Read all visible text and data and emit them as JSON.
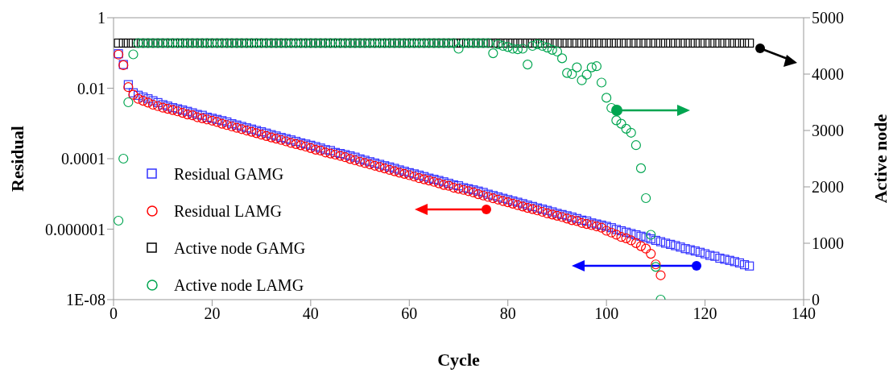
{
  "chart_data": {
    "type": "scatter",
    "xlabel": "Cycle",
    "ylabel": "Residual",
    "y2label": "Active node",
    "log": "y",
    "grid": false,
    "legend": "left",
    "xlim": [
      0,
      140
    ],
    "xticks": [
      0,
      20,
      40,
      60,
      80,
      100,
      120,
      140
    ],
    "ylim": [
      1e-08,
      1
    ],
    "yticks": [
      {
        "value": 1e-08,
        "label": "1E-08"
      },
      {
        "value": 1e-06,
        "label": "0.000001"
      },
      {
        "value": 0.0001,
        "label": "0.0001"
      },
      {
        "value": 0.01,
        "label": "0.01"
      },
      {
        "value": 1,
        "label": "1"
      }
    ],
    "y2lim": [
      0,
      5000
    ],
    "y2ticks": [
      0,
      1000,
      2000,
      3000,
      4000,
      5000
    ],
    "series": [
      {
        "name": "Residual GAMG",
        "color": "#3333ff",
        "marker": "square",
        "x": [
          1,
          2,
          3,
          4,
          5,
          6,
          7,
          8,
          9,
          10,
          11,
          12,
          13,
          14,
          15,
          16,
          17,
          18,
          19,
          20,
          21,
          22,
          23,
          24,
          25,
          26,
          27,
          28,
          29,
          30,
          31,
          32,
          33,
          34,
          35,
          36,
          37,
          38,
          39,
          40,
          41,
          42,
          43,
          44,
          45,
          46,
          47,
          48,
          49,
          50,
          51,
          52,
          53,
          54,
          55,
          56,
          57,
          58,
          59,
          60,
          61,
          62,
          63,
          64,
          65,
          66,
          67,
          68,
          69,
          70,
          71,
          72,
          73,
          74,
          75,
          76,
          77,
          78,
          79,
          80,
          81,
          82,
          83,
          84,
          85,
          86,
          87,
          88,
          89,
          90,
          91,
          92,
          93,
          94,
          95,
          96,
          97,
          98,
          99,
          100,
          101,
          102,
          103,
          104,
          105,
          106,
          107,
          108,
          109,
          110,
          111,
          112,
          113,
          114,
          115,
          116,
          117,
          118,
          119,
          120,
          121,
          122,
          123,
          124,
          125,
          126,
          127,
          128,
          129
        ],
        "values": [
          0.095,
          0.047,
          0.0126,
          0.0074,
          0.0063,
          0.0056,
          0.005,
          0.0044,
          0.0039,
          0.0034,
          0.0031,
          0.0028,
          0.0026,
          0.0024,
          0.0022,
          0.002,
          0.0018,
          0.0017,
          0.0015,
          0.0014,
          0.0013,
          0.0012,
          0.0011,
          0.00098,
          0.0009,
          0.00082,
          0.00075,
          0.00069,
          0.00063,
          0.00058,
          0.00053,
          0.00048,
          0.00044,
          0.0004,
          0.00037,
          0.00034,
          0.00031,
          0.00028,
          0.00026,
          0.00024,
          0.00022,
          0.0002,
          0.00018,
          0.00017,
          0.00015,
          0.00014,
          0.00013,
          0.00012,
          0.00011,
          9.8e-05,
          9e-05,
          8.2e-05,
          7.5e-05,
          6.9e-05,
          6.3e-05,
          5.8e-05,
          5.3e-05,
          4.8e-05,
          4.4e-05,
          4e-05,
          3.7e-05,
          3.4e-05,
          3.1e-05,
          2.8e-05,
          2.6e-05,
          2.4e-05,
          2.2e-05,
          2e-05,
          1.8e-05,
          1.7e-05,
          1.5e-05,
          1.4e-05,
          1.3e-05,
          1.2e-05,
          1.1e-05,
          9.8e-06,
          9e-06,
          8.2e-06,
          7.5e-06,
          6.9e-06,
          6.3e-06,
          5.8e-06,
          5.3e-06,
          4.8e-06,
          4.4e-06,
          4e-06,
          3.7e-06,
          3.4e-06,
          3.1e-06,
          2.8e-06,
          2.6e-06,
          2.4e-06,
          2.2e-06,
          2e-06,
          1.8e-06,
          1.7e-06,
          1.5e-06,
          1.4e-06,
          1.3e-06,
          1.2e-06,
          1.1e-06,
          9.8e-07,
          9e-07,
          8.2e-07,
          7.5e-07,
          6.9e-07,
          6.3e-07,
          5.8e-07,
          5.3e-07,
          4.8e-07,
          4.4e-07,
          4e-07,
          3.7e-07,
          3.4e-07,
          3.1e-07,
          2.8e-07,
          2.6e-07,
          2.4e-07,
          2.2e-07,
          2e-07,
          1.8e-07,
          1.7e-07,
          1.5e-07,
          1.4e-07,
          1.3e-07,
          1.2e-07,
          1.1e-07,
          9.8e-08,
          9e-08
        ]
      },
      {
        "name": "Residual LAMG",
        "color": "#ff0000",
        "marker": "circle",
        "x": [
          1,
          2,
          3,
          4,
          5,
          6,
          7,
          8,
          9,
          10,
          11,
          12,
          13,
          14,
          15,
          16,
          17,
          18,
          19,
          20,
          21,
          22,
          23,
          24,
          25,
          26,
          27,
          28,
          29,
          30,
          31,
          32,
          33,
          34,
          35,
          36,
          37,
          38,
          39,
          40,
          41,
          42,
          43,
          44,
          45,
          46,
          47,
          48,
          49,
          50,
          51,
          52,
          53,
          54,
          55,
          56,
          57,
          58,
          59,
          60,
          61,
          62,
          63,
          64,
          65,
          66,
          67,
          68,
          69,
          70,
          71,
          72,
          73,
          74,
          75,
          76,
          77,
          78,
          79,
          80,
          81,
          82,
          83,
          84,
          85,
          86,
          87,
          88,
          89,
          90,
          91,
          92,
          93,
          94,
          95,
          96,
          97,
          98,
          99,
          100,
          101,
          102,
          103,
          104,
          105,
          106,
          107,
          108,
          109,
          110,
          111
        ],
        "values": [
          0.09,
          0.045,
          0.0107,
          0.0065,
          0.005,
          0.0044,
          0.0039,
          0.0034,
          0.0031,
          0.0028,
          0.0026,
          0.0024,
          0.0022,
          0.002,
          0.0018,
          0.0017,
          0.0015,
          0.0014,
          0.0013,
          0.0012,
          0.0011,
          0.00098,
          0.0009,
          0.00082,
          0.00075,
          0.00069,
          0.00063,
          0.00058,
          0.00053,
          0.00048,
          0.00044,
          0.0004,
          0.00037,
          0.00034,
          0.00031,
          0.00028,
          0.00026,
          0.00024,
          0.00022,
          0.0002,
          0.00018,
          0.00017,
          0.00015,
          0.00014,
          0.00013,
          0.00012,
          0.00011,
          9.8e-05,
          9e-05,
          8.2e-05,
          7.5e-05,
          6.9e-05,
          6.3e-05,
          5.8e-05,
          5.3e-05,
          4.8e-05,
          4.4e-05,
          4e-05,
          3.7e-05,
          3.4e-05,
          3.1e-05,
          2.8e-05,
          2.6e-05,
          2.4e-05,
          2.2e-05,
          2e-05,
          1.8e-05,
          1.7e-05,
          1.5e-05,
          1.4e-05,
          1.3e-05,
          1.2e-05,
          1.1e-05,
          9.8e-06,
          9e-06,
          8.2e-06,
          7.5e-06,
          6.9e-06,
          6.3e-06,
          5.8e-06,
          5.3e-06,
          4.8e-06,
          4.4e-06,
          4e-06,
          3.7e-06,
          3.4e-06,
          3.1e-06,
          2.8e-06,
          2.6e-06,
          2.4e-06,
          2.2e-06,
          2e-06,
          1.8e-06,
          1.7e-06,
          1.5e-06,
          1.4e-06,
          1.3e-06,
          1.2e-06,
          1.1e-06,
          9e-07,
          8e-07,
          7e-07,
          6e-07,
          5.5e-07,
          4.8e-07,
          4e-07,
          3.3e-07,
          2.8e-07,
          2e-07,
          1e-07,
          4.9e-08
        ]
      },
      {
        "name": "Active node GAMG",
        "color": "#000000",
        "marker": "square",
        "axis": "y2",
        "x": [
          1,
          2,
          3,
          4,
          5,
          6,
          7,
          8,
          9,
          10,
          11,
          12,
          13,
          14,
          15,
          16,
          17,
          18,
          19,
          20,
          21,
          22,
          23,
          24,
          25,
          26,
          27,
          28,
          29,
          30,
          31,
          32,
          33,
          34,
          35,
          36,
          37,
          38,
          39,
          40,
          41,
          42,
          43,
          44,
          45,
          46,
          47,
          48,
          49,
          50,
          51,
          52,
          53,
          54,
          55,
          56,
          57,
          58,
          59,
          60,
          61,
          62,
          63,
          64,
          65,
          66,
          67,
          68,
          69,
          70,
          71,
          72,
          73,
          74,
          75,
          76,
          77,
          78,
          79,
          80,
          81,
          82,
          83,
          84,
          85,
          86,
          87,
          88,
          89,
          90,
          91,
          92,
          93,
          94,
          95,
          96,
          97,
          98,
          99,
          100,
          101,
          102,
          103,
          104,
          105,
          106,
          107,
          108,
          109,
          110,
          111,
          112,
          113,
          114,
          115,
          116,
          117,
          118,
          119,
          120,
          121,
          122,
          123,
          124,
          125,
          126,
          127,
          128,
          129
        ],
        "values": [
          4550,
          4550,
          4550,
          4550,
          4550,
          4550,
          4550,
          4550,
          4550,
          4550,
          4550,
          4550,
          4550,
          4550,
          4550,
          4550,
          4550,
          4550,
          4550,
          4550,
          4550,
          4550,
          4550,
          4550,
          4550,
          4550,
          4550,
          4550,
          4550,
          4550,
          4550,
          4550,
          4550,
          4550,
          4550,
          4550,
          4550,
          4550,
          4550,
          4550,
          4550,
          4550,
          4550,
          4550,
          4550,
          4550,
          4550,
          4550,
          4550,
          4550,
          4550,
          4550,
          4550,
          4550,
          4550,
          4550,
          4550,
          4550,
          4550,
          4550,
          4550,
          4550,
          4550,
          4550,
          4550,
          4550,
          4550,
          4550,
          4550,
          4550,
          4550,
          4550,
          4550,
          4550,
          4550,
          4550,
          4550,
          4550,
          4550,
          4550,
          4550,
          4550,
          4550,
          4550,
          4550,
          4550,
          4550,
          4550,
          4550,
          4550,
          4550,
          4550,
          4550,
          4550,
          4550,
          4550,
          4550,
          4550,
          4550,
          4550,
          4550,
          4550,
          4550,
          4550,
          4550,
          4550,
          4550,
          4550,
          4550,
          4550,
          4550,
          4550,
          4550,
          4550,
          4550,
          4550,
          4550,
          4550,
          4550,
          4550,
          4550,
          4550,
          4550,
          4550,
          4550,
          4550,
          4550,
          4550,
          4550
        ]
      },
      {
        "name": "Active node LAMG",
        "color": "#00a550",
        "marker": "circle",
        "axis": "y2",
        "x": [
          1,
          2,
          3,
          4,
          5,
          6,
          7,
          8,
          9,
          10,
          11,
          12,
          13,
          14,
          15,
          16,
          17,
          18,
          19,
          20,
          21,
          22,
          23,
          24,
          25,
          26,
          27,
          28,
          29,
          30,
          31,
          32,
          33,
          34,
          35,
          36,
          37,
          38,
          39,
          40,
          41,
          42,
          43,
          44,
          45,
          46,
          47,
          48,
          49,
          50,
          51,
          52,
          53,
          54,
          55,
          56,
          57,
          58,
          59,
          60,
          61,
          62,
          63,
          64,
          65,
          66,
          67,
          68,
          69,
          70,
          71,
          72,
          73,
          74,
          75,
          76,
          77,
          78,
          79,
          80,
          81,
          82,
          83,
          84,
          85,
          86,
          87,
          88,
          89,
          90,
          91,
          92,
          93,
          94,
          95,
          96,
          97,
          98,
          99,
          100,
          101,
          102,
          103,
          104,
          105,
          106,
          107,
          108,
          109,
          110,
          111
        ],
        "values": [
          1400,
          2500,
          3500,
          4350,
          4550,
          4550,
          4550,
          4550,
          4550,
          4550,
          4550,
          4550,
          4550,
          4550,
          4550,
          4550,
          4550,
          4550,
          4550,
          4550,
          4550,
          4550,
          4550,
          4550,
          4550,
          4550,
          4550,
          4550,
          4550,
          4550,
          4550,
          4550,
          4550,
          4550,
          4550,
          4550,
          4550,
          4550,
          4550,
          4550,
          4550,
          4550,
          4550,
          4550,
          4550,
          4550,
          4550,
          4550,
          4550,
          4550,
          4550,
          4550,
          4550,
          4550,
          4550,
          4550,
          4550,
          4550,
          4550,
          4550,
          4550,
          4550,
          4550,
          4550,
          4550,
          4550,
          4550,
          4550,
          4550,
          4450,
          4550,
          4550,
          4550,
          4550,
          4550,
          4550,
          4370,
          4530,
          4500,
          4480,
          4450,
          4440,
          4450,
          4170,
          4500,
          4530,
          4500,
          4470,
          4430,
          4400,
          4280,
          4020,
          4000,
          4120,
          3890,
          3990,
          4120,
          4140,
          3850,
          3580,
          3400,
          3180,
          3120,
          3030,
          2960,
          2740,
          2330,
          1800,
          1150,
          580,
          0
        ]
      }
    ]
  }
}
